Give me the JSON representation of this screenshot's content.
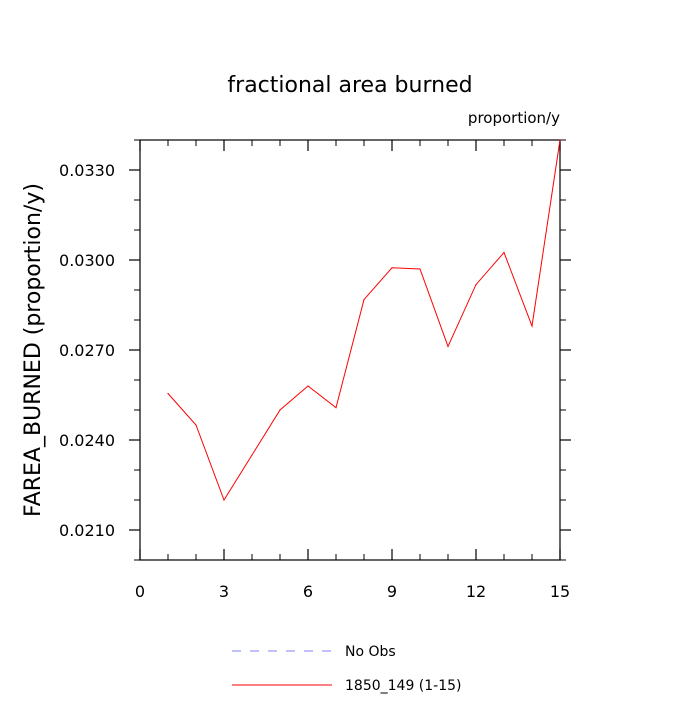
{
  "chart_data": {
    "type": "line",
    "title": "fractional area burned",
    "units_label": "proportion/y",
    "xlabel": "",
    "ylabel": "FAREA_BURNED  (proportion/y)",
    "xlim": [
      0,
      15
    ],
    "ylim": [
      0.02,
      0.034
    ],
    "x_ticks": [
      0,
      3,
      6,
      9,
      12,
      15
    ],
    "x_tick_labels": [
      "0",
      "3",
      "6",
      "9",
      "12",
      "15"
    ],
    "y_ticks": [
      0.021,
      0.024,
      0.027,
      0.03,
      0.033
    ],
    "y_tick_labels": [
      "0.0210",
      "0.0240",
      "0.0270",
      "0.0300",
      "0.0330"
    ],
    "grid": false,
    "legend_position": "bottom",
    "series": [
      {
        "name": "No Obs",
        "color": "#8080ff",
        "style": "dashed",
        "x": [],
        "values": []
      },
      {
        "name": "1850_149 (1-15)",
        "color": "#ff0000",
        "style": "solid",
        "x": [
          1,
          2,
          3,
          4,
          5,
          6,
          7,
          8,
          9,
          10,
          11,
          12,
          13,
          14,
          15
        ],
        "values": [
          0.02555,
          0.0245,
          0.022,
          0.0235,
          0.025,
          0.0258,
          0.02508,
          0.02868,
          0.02974,
          0.0297,
          0.02712,
          0.02918,
          0.03025,
          0.0278,
          0.034
        ]
      }
    ]
  }
}
